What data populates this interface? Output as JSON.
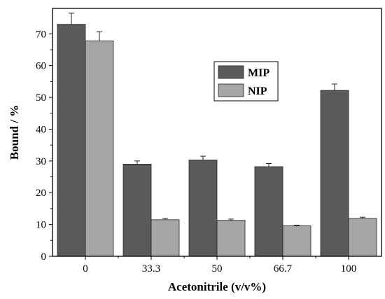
{
  "chart_data": {
    "type": "bar",
    "title": "",
    "xlabel": "Acetonitrile (v/v%)",
    "ylabel": "Bound / %",
    "categories": [
      "0",
      "33.3",
      "50",
      "66.7",
      "100"
    ],
    "series": [
      {
        "name": "MIP",
        "color": "#5a5a5a",
        "values": [
          73.0,
          29.0,
          30.3,
          28.2,
          52.2
        ],
        "errors": [
          3.5,
          1.0,
          1.2,
          1.0,
          2.0
        ]
      },
      {
        "name": "NIP",
        "color": "#a6a6a6",
        "values": [
          67.8,
          11.5,
          11.3,
          9.6,
          11.9
        ],
        "errors": [
          2.8,
          0.4,
          0.4,
          0.2,
          0.4
        ]
      }
    ],
    "ylim": [
      0,
      78
    ],
    "yticks": [
      0,
      10,
      20,
      30,
      40,
      50,
      60,
      70
    ],
    "grid": false,
    "legend": "upper-center-right"
  }
}
